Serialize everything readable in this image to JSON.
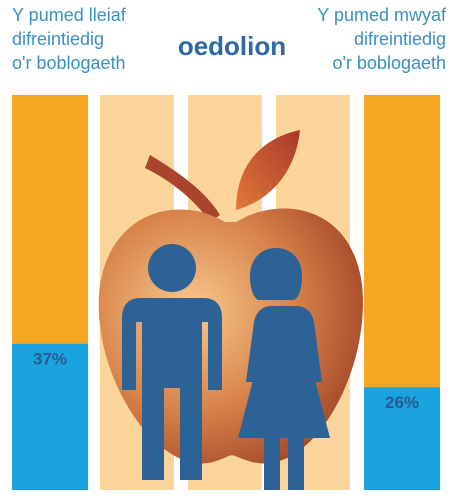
{
  "chart_data": {
    "type": "bar",
    "title": "oedolion",
    "categories": [
      [
        "Y pumed lleiaf",
        "difreintiedig",
        "o'r boblogaeth"
      ],
      [
        "Y pumed mwyaf",
        "difreintiedig",
        "o'r boblogaeth"
      ]
    ],
    "values": [
      37,
      26
    ],
    "value_labels": [
      "37%",
      "26%"
    ],
    "color": "#1ba3e0",
    "ylim": [
      0,
      100
    ]
  }
}
